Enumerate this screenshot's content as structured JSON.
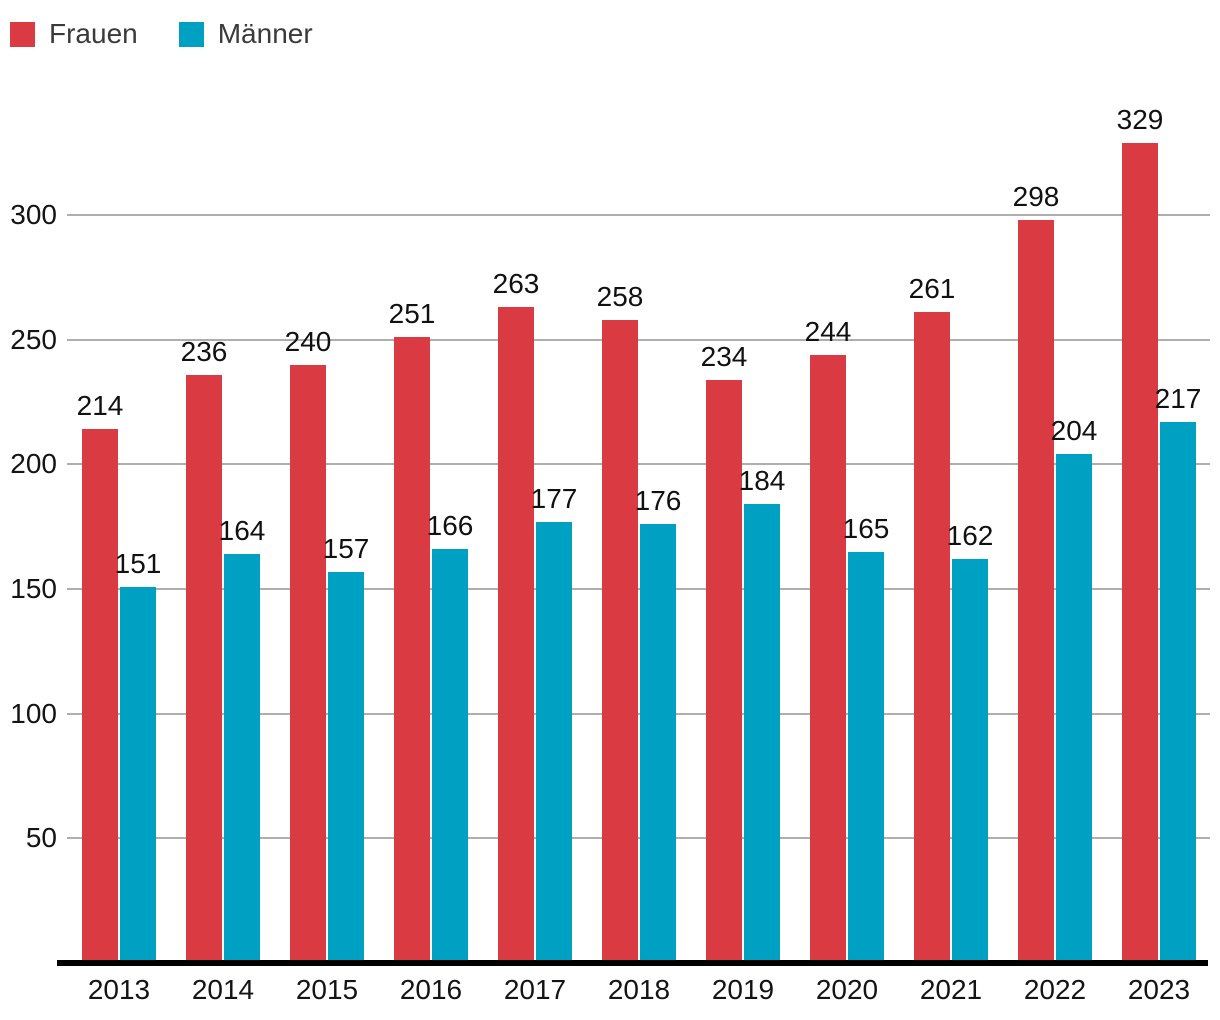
{
  "legend": {
    "items": [
      {
        "label": "Frauen",
        "color": "#da3a42"
      },
      {
        "label": "Männer",
        "color": "#00a0c2"
      }
    ]
  },
  "chart_data": {
    "type": "bar",
    "title": "",
    "xlabel": "",
    "ylabel": "",
    "categories": [
      "2013",
      "2014",
      "2015",
      "2016",
      "2017",
      "2018",
      "2019",
      "2020",
      "2021",
      "2022",
      "2023"
    ],
    "series": [
      {
        "name": "Frauen",
        "color": "#da3a42",
        "values": [
          214,
          236,
          240,
          251,
          263,
          258,
          234,
          244,
          261,
          298,
          329
        ]
      },
      {
        "name": "Männer",
        "color": "#00a0c2",
        "values": [
          151,
          164,
          157,
          166,
          177,
          176,
          184,
          165,
          162,
          204,
          217
        ]
      }
    ],
    "yticks": [
      50,
      100,
      150,
      200,
      250,
      300
    ],
    "ylim": [
      0,
      345
    ],
    "grid": true,
    "bar_labels": true,
    "legend_position": "top-left"
  },
  "colors": {
    "grid": "#aeaeae",
    "axis": "#000000",
    "tick_text": "#141414",
    "bar_label_text": "#111111",
    "legend_text": "#3a3a3a",
    "background": "#ffffff"
  }
}
